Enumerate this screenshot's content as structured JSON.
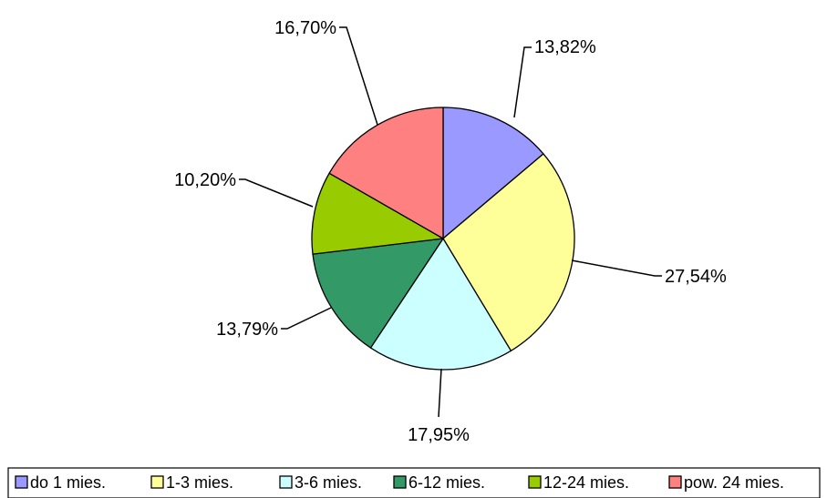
{
  "chart_data": {
    "type": "pie",
    "title": "",
    "start": "12 o'clock",
    "direction": "clockwise",
    "legend_position": "bottom",
    "slices": [
      {
        "label": "do 1 mies.",
        "value": 13.82,
        "display": "13,82%",
        "color": "#9999ff"
      },
      {
        "label": "1-3 mies.",
        "value": 27.54,
        "display": "27,54%",
        "color": "#ffff99"
      },
      {
        "label": "3-6 mies.",
        "value": 17.95,
        "display": "17,95%",
        "color": "#ccffff"
      },
      {
        "label": "6-12 mies.",
        "value": 13.79,
        "display": "13,79%",
        "color": "#339966"
      },
      {
        "label": "12-24 mies.",
        "value": 10.2,
        "display": "10,20%",
        "color": "#99cc00"
      },
      {
        "label": "pow. 24 mies.",
        "value": 16.7,
        "display": "16,70%",
        "color": "#ff8080"
      }
    ]
  }
}
